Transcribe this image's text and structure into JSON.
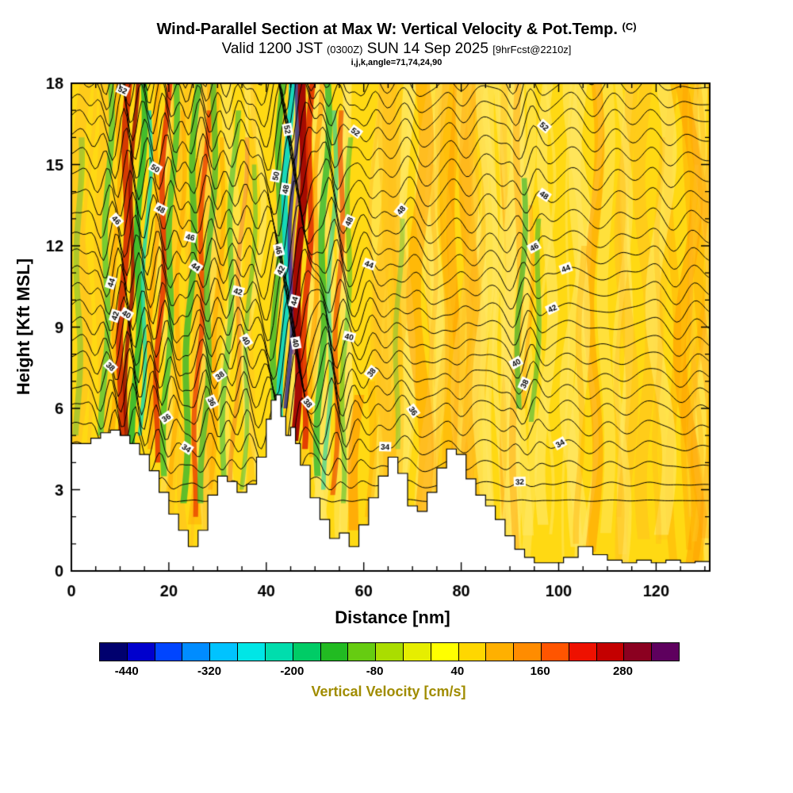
{
  "title": {
    "line1": "Wind-Parallel Section at Max W: Vertical Velocity & Pot.Temp.",
    "line1_suffix": "(C)",
    "line2_a": "Valid 1200 JST",
    "line2_b": "(0300Z)",
    "line2_c": "SUN 14 Sep 2025",
    "line2_d": "[9hrFcst@2210z]",
    "line3": "i,j,k,angle=71,74,24,90"
  },
  "axes": {
    "x": {
      "label": "Distance [nm]",
      "ticks": [
        0,
        20,
        40,
        60,
        80,
        100,
        120
      ],
      "min": 0,
      "max": 131,
      "minor_step": 5,
      "major_step": 20
    },
    "y": {
      "label": "Height [Kft MSL]",
      "ticks": [
        0,
        3,
        6,
        9,
        12,
        15,
        18
      ],
      "min": 0,
      "max": 18,
      "minor_step": 1,
      "major_step": 3
    }
  },
  "colorbar": {
    "caption": "Vertical Velocity [cm/s]",
    "caption_color": "#a08c00",
    "min": -480,
    "max": 360,
    "step": 40,
    "tick_labels": [
      -440,
      -320,
      -200,
      -80,
      40,
      160,
      280
    ],
    "colors": [
      "#00006e",
      "#0000cd",
      "#0045ff",
      "#008cff",
      "#00c3ff",
      "#00e6e6",
      "#00ddad",
      "#00cc66",
      "#22bb22",
      "#66cc11",
      "#aadd00",
      "#e6ee00",
      "#ffff00",
      "#ffd700",
      "#ffb000",
      "#ff8c00",
      "#ff5500",
      "#ee1100",
      "#c40000",
      "#8b0020",
      "#5e005e"
    ]
  },
  "chart_data": {
    "type": "heatmap",
    "title": "Wind-Parallel Section at Max W: Vertical Velocity & Pot.Temp. (C)",
    "xlabel": "Distance [nm]",
    "ylabel": "Height [Kft MSL]",
    "xlim": [
      0,
      131
    ],
    "ylim": [
      0,
      18
    ],
    "fill_field": "Vertical velocity (cm/s), filled shading from -480 to 360 by 40; background mostly +0 to +80 (yellow) with tilted wave updraft/downdraft bands",
    "contour_field": "Potential temperature (C), thin black contours every 1 C, labeled every 2 C from 32 to 52",
    "field_base_color": "#ffd913",
    "contours": {
      "min": 31,
      "max": 57,
      "interval": 1,
      "labeled_values": [
        32,
        34,
        36,
        38,
        40,
        42,
        44,
        46,
        48,
        50,
        52
      ],
      "labels": [
        {
          "v": 52,
          "x": 10.5,
          "y": 17.2
        },
        {
          "v": 50,
          "x": 17.2,
          "y": 15.7
        },
        {
          "v": 48,
          "x": 18.3,
          "y": 14.3
        },
        {
          "v": 46,
          "x": 24.4,
          "y": 13.2
        },
        {
          "v": 44,
          "x": 25.5,
          "y": 11.9
        },
        {
          "v": 46,
          "x": 9.2,
          "y": 11.9
        },
        {
          "v": 44,
          "x": 8.2,
          "y": 10.7
        },
        {
          "v": 42,
          "x": 9.0,
          "y": 9.3
        },
        {
          "v": 40,
          "x": 11.3,
          "y": 9.4
        },
        {
          "v": 38,
          "x": 8.0,
          "y": 6.8
        },
        {
          "v": 36,
          "x": 19.5,
          "y": 7.0
        },
        {
          "v": 34,
          "x": 23.6,
          "y": 6.2
        },
        {
          "v": 42,
          "x": 34.2,
          "y": 10.1
        },
        {
          "v": 40,
          "x": 35.8,
          "y": 9.1
        },
        {
          "v": 38,
          "x": 30.5,
          "y": 8.2
        },
        {
          "v": 36,
          "x": 28.8,
          "y": 7.6
        },
        {
          "v": 52,
          "x": 44.3,
          "y": 16.0
        },
        {
          "v": 50,
          "x": 42.0,
          "y": 14.3
        },
        {
          "v": 48,
          "x": 44.0,
          "y": 12.0
        },
        {
          "v": 46,
          "x": 42.5,
          "y": 9.9
        },
        {
          "v": 44,
          "x": 45.8,
          "y": 11.0
        },
        {
          "v": 42,
          "x": 43.0,
          "y": 7.5
        },
        {
          "v": 40,
          "x": 46.0,
          "y": 8.3
        },
        {
          "v": 38,
          "x": 48.5,
          "y": 8.2
        },
        {
          "v": 52,
          "x": 58.3,
          "y": 16.8
        },
        {
          "v": 48,
          "x": 57.0,
          "y": 13.9
        },
        {
          "v": 48,
          "x": 67.7,
          "y": 12.6
        },
        {
          "v": 44,
          "x": 61.1,
          "y": 10.8
        },
        {
          "v": 40,
          "x": 57.0,
          "y": 9.1
        },
        {
          "v": 38,
          "x": 61.6,
          "y": 7.8
        },
        {
          "v": 36,
          "x": 70.1,
          "y": 6.8
        },
        {
          "v": 34,
          "x": 64.4,
          "y": 5.9
        },
        {
          "v": 52,
          "x": 97.0,
          "y": 16.9
        },
        {
          "v": 48,
          "x": 97.0,
          "y": 14.0
        },
        {
          "v": 46,
          "x": 95.0,
          "y": 12.3
        },
        {
          "v": 44,
          "x": 101.5,
          "y": 11.1
        },
        {
          "v": 42,
          "x": 98.7,
          "y": 9.7
        },
        {
          "v": 40,
          "x": 91.3,
          "y": 9.0
        },
        {
          "v": 38,
          "x": 93.0,
          "y": 7.3
        },
        {
          "v": 34,
          "x": 100.3,
          "y": 4.5
        },
        {
          "v": 32,
          "x": 92.0,
          "y": 3.2
        }
      ]
    },
    "theta_height_anchors": [
      [
        30,
        2.0
      ],
      [
        32,
        3.2
      ],
      [
        34,
        4.6
      ],
      [
        36,
        6.0
      ],
      [
        38,
        7.2
      ],
      [
        40,
        8.4
      ],
      [
        42,
        9.7
      ],
      [
        44,
        11.0
      ],
      [
        46,
        12.3
      ],
      [
        48,
        13.8
      ],
      [
        50,
        15.3
      ],
      [
        52,
        16.7
      ],
      [
        54,
        17.9
      ],
      [
        56,
        19.0
      ],
      [
        58,
        20.0
      ],
      [
        60,
        21.0
      ],
      [
        62,
        22.0
      ]
    ],
    "wave_packets": [
      {
        "x": 11,
        "w": 6,
        "a": 0.9,
        "lam": 4.5,
        "tilt": 0.9,
        "ph": 0
      },
      {
        "x": 20,
        "w": 5,
        "a": 0.7,
        "lam": 4.5,
        "tilt": 0.9,
        "ph": 1
      },
      {
        "x": 27,
        "w": 5,
        "a": 0.8,
        "lam": 5,
        "tilt": 0.8,
        "ph": 2
      },
      {
        "x": 34,
        "w": 4,
        "a": 0.6,
        "lam": 5,
        "tilt": 0.8,
        "ph": 0.5
      },
      {
        "x": 45,
        "w": 6,
        "a": 1.6,
        "lam": 6,
        "tilt": 1.0,
        "ph": 0
      },
      {
        "x": 53,
        "w": 4,
        "a": 0.9,
        "lam": 5,
        "tilt": 0.9,
        "ph": 1.5
      },
      {
        "x": 60,
        "w": 4,
        "a": 0.5,
        "lam": 6,
        "tilt": 0.6,
        "ph": 0.3
      },
      {
        "x": 70,
        "w": 5,
        "a": 0.35,
        "lam": 7,
        "tilt": 0.5,
        "ph": 1
      },
      {
        "x": 80,
        "w": 5,
        "a": 0.3,
        "lam": 7,
        "tilt": 0.5,
        "ph": 2
      },
      {
        "x": 93,
        "w": 4,
        "a": 0.55,
        "lam": 6,
        "tilt": 0.7,
        "ph": 0.7
      },
      {
        "x": 110,
        "w": 8,
        "a": 0.25,
        "lam": 9,
        "tilt": 0.4,
        "ph": 0
      },
      {
        "x": 125,
        "w": 6,
        "a": 0.25,
        "lam": 8,
        "tilt": 0.4,
        "ph": 1.2
      }
    ],
    "updraft_bands": [
      {
        "x": 1.2,
        "dx": 0.5,
        "w": 1.2,
        "y0": 5,
        "y1": 16,
        "c": "#50c040",
        "a": 0.45
      },
      {
        "x": 6.5,
        "dx": 1.5,
        "w": 1.2,
        "y0": 5,
        "y1": 18,
        "c": "#58c838",
        "a": 0.8
      },
      {
        "x": 8.3,
        "dx": 1.6,
        "w": 1.0,
        "y0": 5,
        "y1": 18,
        "c": "#ffa500",
        "a": 0.65
      },
      {
        "x": 9.8,
        "dx": 2.0,
        "w": 1.4,
        "y0": 4.8,
        "y1": 18,
        "c": "#d02800",
        "a": 0.9
      },
      {
        "x": 11.2,
        "dx": 2.0,
        "w": 0.8,
        "y0": 4.8,
        "y1": 18,
        "c": "#8b0000",
        "a": 0.8
      },
      {
        "x": 12.8,
        "dx": 2.0,
        "w": 1.3,
        "y0": 4.6,
        "y1": 18,
        "c": "#30b830",
        "a": 0.9
      },
      {
        "x": 14.2,
        "dx": 2.0,
        "w": 0.8,
        "y0": 5,
        "y1": 17,
        "c": "#00d8b8",
        "a": 0.75
      },
      {
        "x": 15.8,
        "dx": 2.2,
        "w": 1.0,
        "y0": 4.5,
        "y1": 18,
        "c": "#ffa000",
        "a": 0.7
      },
      {
        "x": 17.3,
        "dx": 2.4,
        "w": 1.1,
        "y0": 4.0,
        "y1": 18,
        "c": "#e03000",
        "a": 0.85
      },
      {
        "x": 19.0,
        "dx": 2.4,
        "w": 1.2,
        "y0": 3.5,
        "y1": 18,
        "c": "#40c030",
        "a": 0.8
      },
      {
        "x": 20.8,
        "dx": 2.4,
        "w": 0.9,
        "y0": 3.0,
        "y1": 17,
        "c": "#ffa500",
        "a": 0.55
      },
      {
        "x": 23.0,
        "dx": 2.8,
        "w": 1.3,
        "y0": 2.5,
        "y1": 18,
        "c": "#38b830",
        "a": 0.8
      },
      {
        "x": 25.0,
        "dx": 2.8,
        "w": 1.0,
        "y0": 2.0,
        "y1": 17,
        "c": "#e84000",
        "a": 0.8
      },
      {
        "x": 26.8,
        "dx": 2.8,
        "w": 1.2,
        "y0": 2.5,
        "y1": 18,
        "c": "#38b830",
        "a": 0.7
      },
      {
        "x": 28.6,
        "dx": 2.8,
        "w": 0.9,
        "y0": 3.0,
        "y1": 16,
        "c": "#ffa500",
        "a": 0.55
      },
      {
        "x": 31.0,
        "dx": 2.8,
        "w": 1.1,
        "y0": 3.5,
        "y1": 17,
        "c": "#48c038",
        "a": 0.65
      },
      {
        "x": 33.0,
        "dx": 2.8,
        "w": 0.9,
        "y0": 3.2,
        "y1": 16,
        "c": "#f08020",
        "a": 0.55
      },
      {
        "x": 35.0,
        "dx": 2.8,
        "w": 0.9,
        "y0": 3.0,
        "y1": 15,
        "c": "#48c038",
        "a": 0.55
      },
      {
        "x": 41.5,
        "dx": 1.8,
        "w": 1.3,
        "y0": 6.0,
        "y1": 18,
        "c": "#38b830",
        "a": 0.8
      },
      {
        "x": 43.0,
        "dx": 1.8,
        "w": 1.3,
        "y0": 5.0,
        "y1": 18,
        "c": "#00d8c8",
        "a": 0.9
      },
      {
        "x": 44.3,
        "dx": 1.8,
        "w": 0.8,
        "y0": 6.0,
        "y1": 18,
        "c": "#282898",
        "a": 0.8
      },
      {
        "x": 45.1,
        "dx": 1.8,
        "w": 0.5,
        "y0": 8.0,
        "y1": 17,
        "c": "#70209a",
        "a": 0.6
      },
      {
        "x": 45.9,
        "dx": 1.9,
        "w": 1.6,
        "y0": 4.8,
        "y1": 18,
        "c": "#a00000",
        "a": 0.95
      },
      {
        "x": 47.5,
        "dx": 2.0,
        "w": 1.2,
        "y0": 4.5,
        "y1": 18,
        "c": "#e03000",
        "a": 0.9
      },
      {
        "x": 49.0,
        "dx": 2.0,
        "w": 1.0,
        "y0": 4.2,
        "y1": 18,
        "c": "#ffa000",
        "a": 0.65
      },
      {
        "x": 50.6,
        "dx": 2.0,
        "w": 1.3,
        "y0": 3.5,
        "y1": 18,
        "c": "#30b830",
        "a": 0.8
      },
      {
        "x": 52.2,
        "dx": 2.0,
        "w": 0.9,
        "y0": 3.0,
        "y1": 17,
        "c": "#00d0b0",
        "a": 0.55
      },
      {
        "x": 53.8,
        "dx": 2.0,
        "w": 1.0,
        "y0": 2.8,
        "y1": 17,
        "c": "#e84000",
        "a": 0.65
      },
      {
        "x": 55.4,
        "dx": 2.0,
        "w": 1.0,
        "y0": 2.5,
        "y1": 16,
        "c": "#40c030",
        "a": 0.55
      },
      {
        "x": 57.5,
        "dx": 1.5,
        "w": 2.0,
        "y0": 1.5,
        "y1": 6.5,
        "c": "#ff9000",
        "a": 0.6
      },
      {
        "x": 61.0,
        "dx": 1.0,
        "w": 1.5,
        "y0": 2.0,
        "y1": 7.0,
        "c": "#ffb000",
        "a": 0.45
      },
      {
        "x": 66.5,
        "dx": 1.0,
        "w": 1.0,
        "y0": 4.5,
        "y1": 13,
        "c": "#60c840",
        "a": 0.45
      },
      {
        "x": 74.0,
        "dx": 0.5,
        "w": 0.9,
        "y0": 3.0,
        "y1": 15.0,
        "c": "#ffb41e",
        "a": 0.4
      },
      {
        "x": 91.5,
        "dx": 1.5,
        "w": 1.1,
        "y0": 6.0,
        "y1": 14.5,
        "c": "#40b830",
        "a": 0.7
      },
      {
        "x": 93.2,
        "dx": 1.5,
        "w": 0.8,
        "y0": 6.0,
        "y1": 13.5,
        "c": "#ffa500",
        "a": 0.55
      },
      {
        "x": 94.8,
        "dx": 1.5,
        "w": 1.0,
        "y0": 5.5,
        "y1": 13.0,
        "c": "#40b830",
        "a": 0.6
      },
      {
        "x": 104.0,
        "dx": 0.8,
        "w": 1.2,
        "y0": 1.0,
        "y1": 12.0,
        "c": "#ffb000",
        "a": 0.4
      },
      {
        "x": 112.0,
        "dx": 0.8,
        "w": 1.0,
        "y0": 2.0,
        "y1": 14.0,
        "c": "#ffbe28",
        "a": 0.35
      },
      {
        "x": 120.0,
        "dx": 0.8,
        "w": 1.1,
        "y0": 1.0,
        "y1": 16.0,
        "c": "#ffb41e",
        "a": 0.35
      },
      {
        "x": 127.0,
        "dx": 0.8,
        "w": 0.9,
        "y0": 2.0,
        "y1": 15.0,
        "c": "#ffc030",
        "a": 0.35
      }
    ],
    "terrain_profile": [
      [
        0,
        4.7
      ],
      [
        2,
        4.7
      ],
      [
        4,
        4.9
      ],
      [
        6,
        5.1
      ],
      [
        8,
        5.2
      ],
      [
        10,
        5.0
      ],
      [
        12,
        4.7
      ],
      [
        14,
        4.3
      ],
      [
        16,
        3.7
      ],
      [
        18,
        2.9
      ],
      [
        20,
        2.1
      ],
      [
        22,
        1.5
      ],
      [
        24,
        0.9
      ],
      [
        26,
        1.5
      ],
      [
        28,
        2.8
      ],
      [
        30,
        3.5
      ],
      [
        32,
        3.3
      ],
      [
        34,
        2.9
      ],
      [
        36,
        3.2
      ],
      [
        38,
        4.2
      ],
      [
        40,
        5.6
      ],
      [
        41,
        6.3
      ],
      [
        42,
        6.5
      ],
      [
        43,
        5.7
      ],
      [
        44,
        5.0
      ],
      [
        45,
        5.3
      ],
      [
        46,
        4.7
      ],
      [
        47,
        3.9
      ],
      [
        49,
        2.7
      ],
      [
        51,
        1.9
      ],
      [
        53,
        1.2
      ],
      [
        55,
        1.4
      ],
      [
        57,
        0.9
      ],
      [
        59,
        1.7
      ],
      [
        61,
        2.7
      ],
      [
        63,
        3.5
      ],
      [
        65,
        4.2
      ],
      [
        67,
        3.6
      ],
      [
        69,
        2.4
      ],
      [
        71,
        2.2
      ],
      [
        73,
        2.9
      ],
      [
        75,
        3.8
      ],
      [
        77,
        4.5
      ],
      [
        79,
        4.3
      ],
      [
        81,
        3.4
      ],
      [
        83,
        2.8
      ],
      [
        85,
        2.4
      ],
      [
        87,
        1.9
      ],
      [
        89,
        1.3
      ],
      [
        91,
        0.8
      ],
      [
        93,
        0.5
      ],
      [
        95,
        0.3
      ],
      [
        98,
        0.3
      ],
      [
        101,
        0.5
      ],
      [
        104,
        0.9
      ],
      [
        107,
        0.6
      ],
      [
        110,
        0.4
      ],
      [
        113,
        0.3
      ],
      [
        116,
        0.4
      ],
      [
        119,
        0.3
      ],
      [
        122,
        0.4
      ],
      [
        125,
        0.3
      ],
      [
        128,
        0.35
      ],
      [
        131,
        0.3
      ]
    ]
  }
}
